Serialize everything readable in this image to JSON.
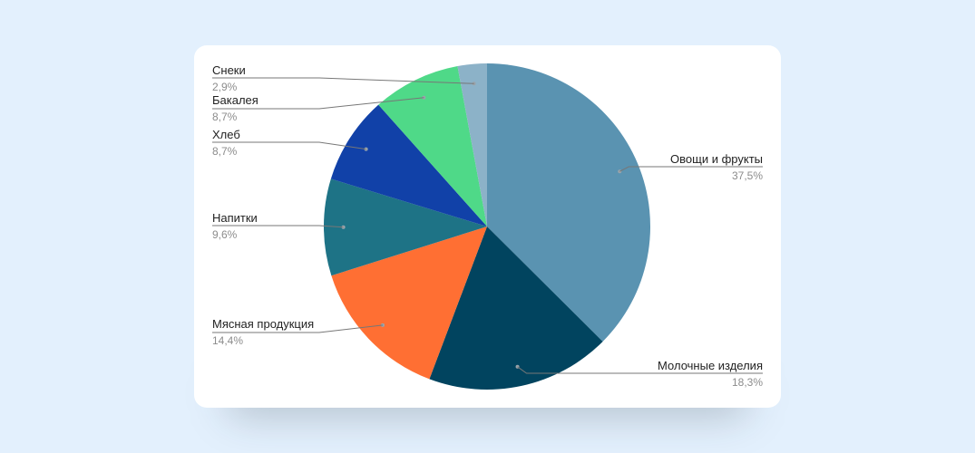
{
  "chart_data": {
    "type": "pie",
    "slices": [
      {
        "label": "Овощи и фрукты",
        "value": 37.5,
        "display": "37,5%",
        "color": "#5a93b1"
      },
      {
        "label": "Молочные изделия",
        "value": 18.3,
        "display": "18,3%",
        "color": "#01445f"
      },
      {
        "label": "Мясная продукция",
        "value": 14.4,
        "display": "14,4%",
        "color": "#ff6f33"
      },
      {
        "label": "Напитки",
        "value": 9.6,
        "display": "9,6%",
        "color": "#1e7386"
      },
      {
        "label": "Хлеб",
        "value": 8.7,
        "display": "8,7%",
        "color": "#1141a8"
      },
      {
        "label": "Бакалея",
        "value": 8.7,
        "display": "8,7%",
        "color": "#4fd988"
      },
      {
        "label": "Снеки",
        "value": 2.9,
        "display": "2,9%",
        "color": "#8cb2c8"
      }
    ]
  }
}
